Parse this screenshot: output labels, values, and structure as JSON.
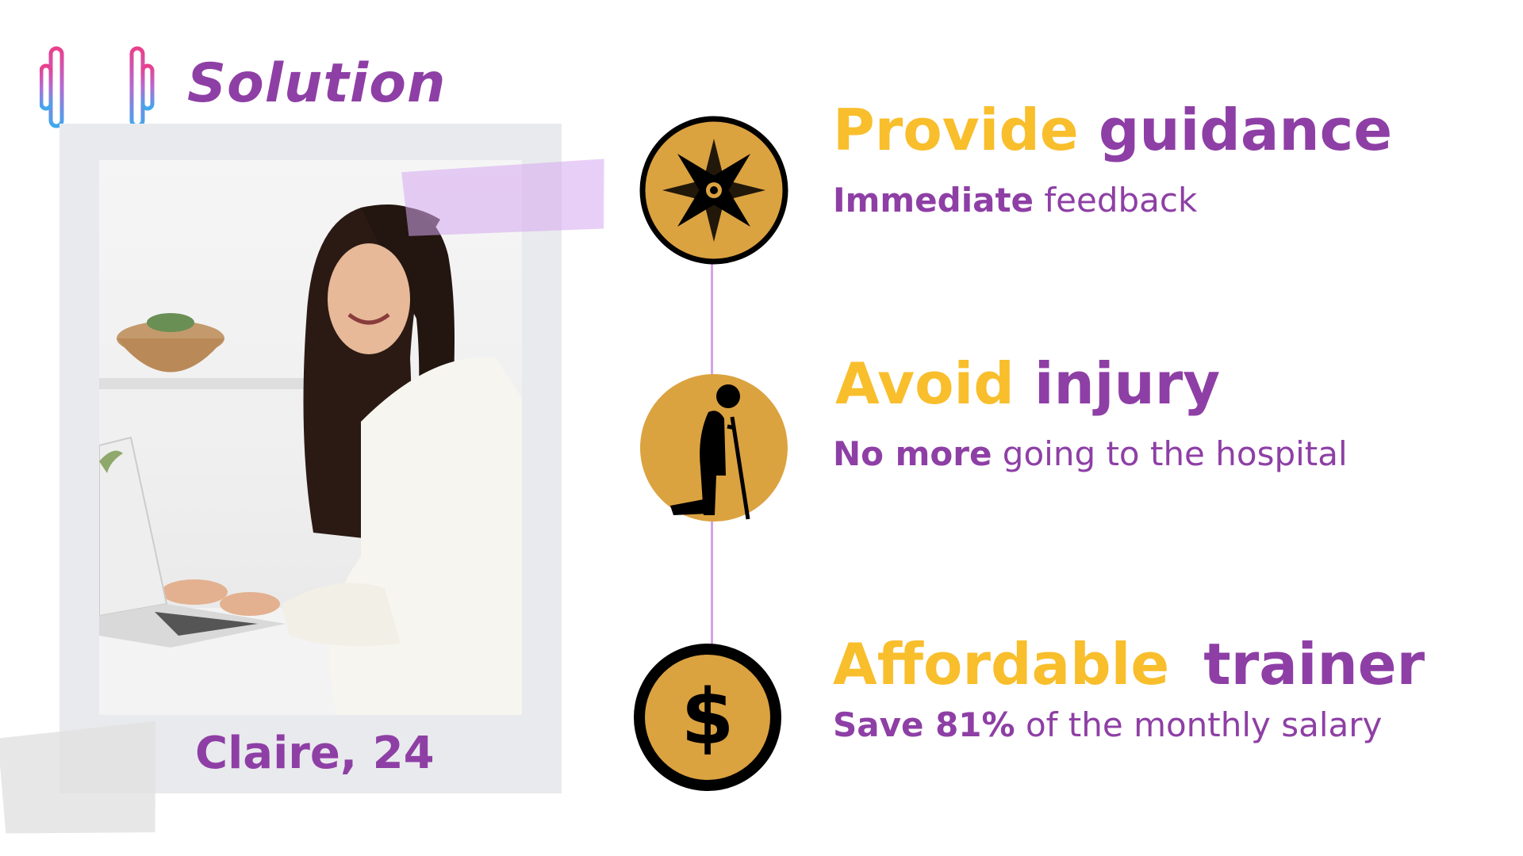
{
  "header": {
    "title": "Solution",
    "logo_icon": "dumbbell-icon"
  },
  "profile": {
    "caption": "Claire, 24"
  },
  "features": [
    {
      "heading_accent": "Provide",
      "heading_main": "guidance",
      "sub_bold": "Immediate",
      "sub_rest": " feedback",
      "icon": "compass-icon"
    },
    {
      "heading_accent": "Avoid",
      "heading_main": "injury",
      "sub_bold": "No more",
      "sub_rest": " going to the hospital",
      "icon": "injured-person-crutch-icon"
    },
    {
      "heading_accent": "Affordable",
      "heading_main": "trainer",
      "sub_bold": "Save 81%",
      "sub_rest": " of the monthly salary",
      "icon": "dollar-coin-icon"
    }
  ],
  "colors": {
    "purple": "#8e3fa5",
    "yellow": "#f8be2c",
    "icon_fill": "#dba240",
    "timeline": "#d3a3e6"
  }
}
